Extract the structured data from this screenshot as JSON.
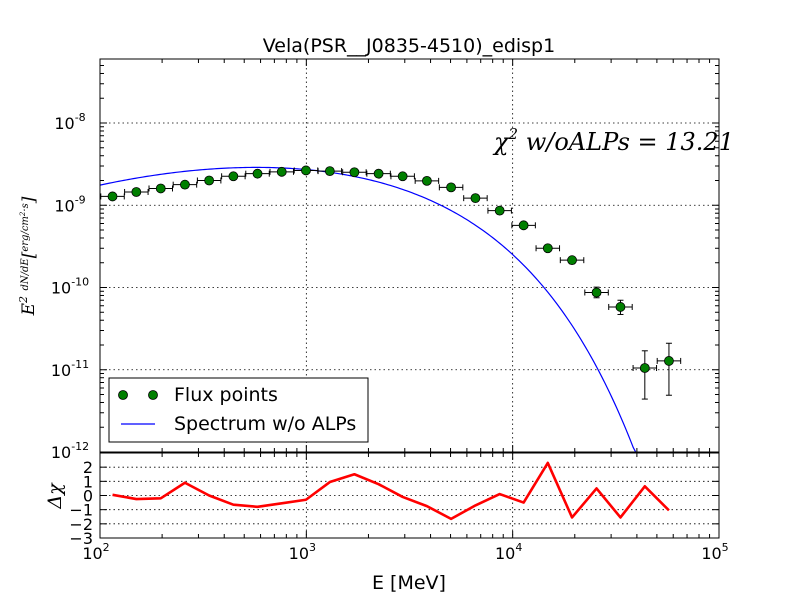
{
  "chart_data": [
    {
      "type": "scatter",
      "title": "Vela(PSR__J0835-4510)_edisp1",
      "xlabel": "",
      "ylabel": "E^2 dN/dE [erg / (cm^2 s)]",
      "ylabel_parts": {
        "e2": "E",
        "sup2": "2",
        "dn": "dN",
        "de": "dE",
        "erg": "erg",
        "cm2s": "cm",
        "sup_cm": "2",
        "s": "s"
      },
      "xscale": "log",
      "yscale": "log",
      "xlim": [
        100,
        100000
      ],
      "ylim": [
        1e-12,
        6e-08
      ],
      "grid": true,
      "x_ticks": [
        {
          "base": "10",
          "exp": "2",
          "value": 100
        },
        {
          "base": "10",
          "exp": "3",
          "value": 1000
        },
        {
          "base": "10",
          "exp": "4",
          "value": 10000
        },
        {
          "base": "10",
          "exp": "5",
          "value": 100000
        }
      ],
      "y_ticks": [
        {
          "base": "10",
          "exp": "-12",
          "value": 1e-12
        },
        {
          "base": "10",
          "exp": "-11",
          "value": 1e-11
        },
        {
          "base": "10",
          "exp": "-10",
          "value": 1e-10
        },
        {
          "base": "10",
          "exp": "-9",
          "value": 1e-09
        },
        {
          "base": "10",
          "exp": "-8",
          "value": 1e-08
        }
      ],
      "annotation": {
        "chi": "χ",
        "chi_sup": "2",
        "text": " w/oALPs = 13.21"
      },
      "legend": {
        "placement": "lower-left",
        "entries": [
          "Flux points",
          "Spectrum w/o ALPs"
        ]
      },
      "series": [
        {
          "name": "Flux points",
          "kind": "points",
          "color": "#007f00",
          "x": [
            115,
            150,
            197,
            258,
            338,
            443,
            580,
            760,
            996,
            1300,
            1710,
            2240,
            2930,
            3840,
            5030,
            6600,
            8650,
            11300,
            14800,
            19400,
            25500,
            33300,
            43700,
            57200
          ],
          "y": [
            1.28e-09,
            1.45e-09,
            1.6e-09,
            1.78e-09,
            2e-09,
            2.25e-09,
            2.42e-09,
            2.55e-09,
            2.65e-09,
            2.6e-09,
            2.52e-09,
            2.42e-09,
            2.25e-09,
            1.98e-09,
            1.65e-09,
            1.22e-09,
            8.6e-10,
            5.7e-10,
            3e-10,
            2.15e-10,
            8.7e-11,
            5.8e-11,
            1.05e-11,
            1.28e-11
          ],
          "y_err_low": [
            5e-11,
            5e-11,
            5e-11,
            5e-11,
            5e-11,
            5e-11,
            5e-11,
            5e-11,
            5e-11,
            5e-11,
            5e-11,
            5e-11,
            5e-11,
            5e-11,
            5e-11,
            5e-11,
            6e-11,
            4e-11,
            2.5e-11,
            2e-11,
            1.2e-11,
            1.1e-11,
            6.1e-12,
            7.9e-12
          ],
          "y_err_high": [
            5e-11,
            5e-11,
            5e-11,
            5e-11,
            5e-11,
            5e-11,
            5e-11,
            5e-11,
            5e-11,
            5e-11,
            5e-11,
            5e-11,
            5e-11,
            5e-11,
            5e-11,
            5e-11,
            6e-11,
            4e-11,
            2.5e-11,
            2e-11,
            1.4e-11,
            1.2e-11,
            6.5e-12,
            8.2e-12
          ],
          "x_err_frac": 0.14
        },
        {
          "name": "Spectrum w/o ALPs",
          "kind": "line",
          "color": "#0000ff",
          "model": {
            "type": "logparabola_cutoff",
            "peak_energy": 1100,
            "peak_value": 2.65e-09,
            "low_index_curv": 0.24,
            "cutoff": 4200,
            "cutoff_index": 0.85
          }
        }
      ]
    },
    {
      "type": "line",
      "xlabel": "E [MeV]",
      "ylabel": "Δχ",
      "xscale": "log",
      "xlim": [
        100,
        100000
      ],
      "ylim": [
        -3,
        3
      ],
      "grid": true,
      "y_ticks": [
        "−3",
        "−2",
        "−1",
        "0",
        "1",
        "2"
      ],
      "y_tick_values": [
        -3,
        -2,
        -1,
        0,
        1,
        2
      ],
      "series": [
        {
          "name": "",
          "color": "#ff0000",
          "x": [
            115,
            150,
            197,
            258,
            338,
            443,
            580,
            760,
            996,
            1300,
            1710,
            2240,
            2930,
            3840,
            5030,
            6600,
            8650,
            11300,
            14800,
            19400,
            25500,
            33300,
            43700,
            57200
          ],
          "y": [
            0.05,
            -0.25,
            -0.2,
            0.9,
            0.0,
            -0.65,
            -0.8,
            -0.55,
            -0.3,
            0.95,
            1.5,
            0.8,
            -0.1,
            -0.75,
            -1.65,
            -0.7,
            0.1,
            -0.5,
            2.3,
            -1.55,
            0.5,
            -1.55,
            0.65,
            -1.05
          ]
        }
      ]
    }
  ]
}
